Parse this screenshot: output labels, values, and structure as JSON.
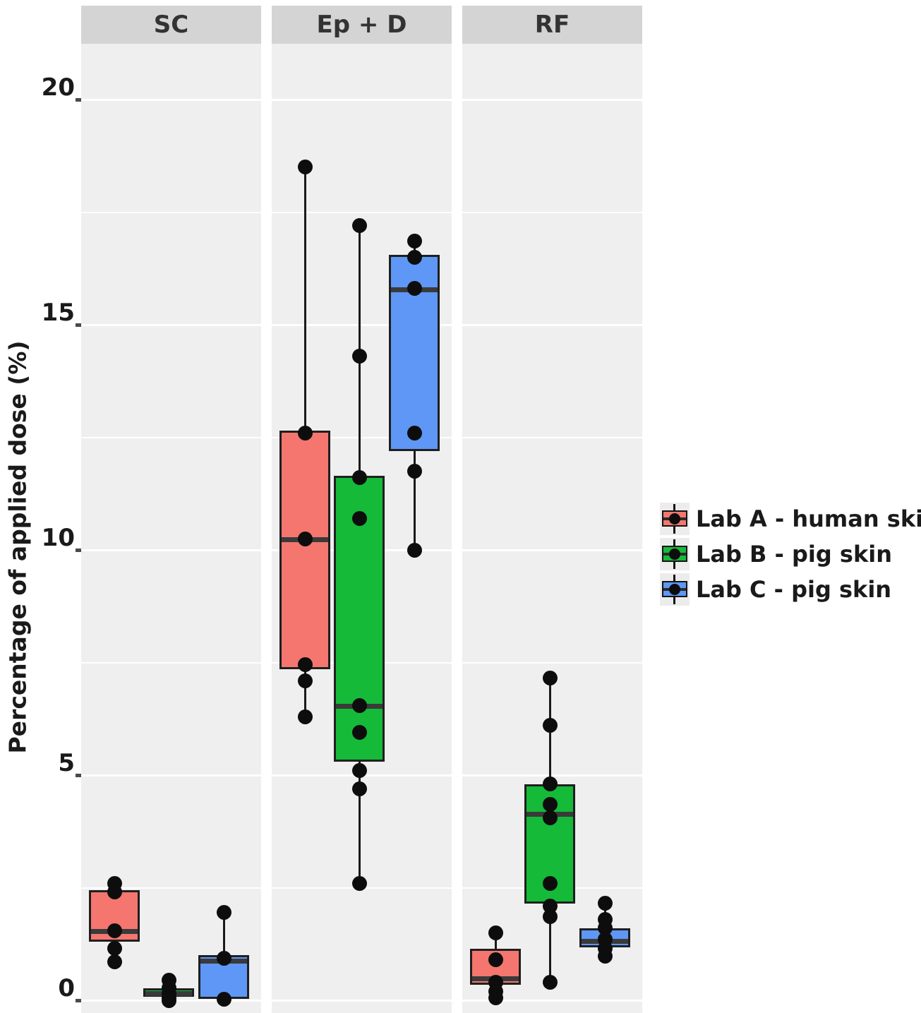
{
  "chart_data": {
    "type": "boxplot",
    "title": "",
    "ylabel": "Percentage of applied dose (%)",
    "xlabel": "",
    "yticks": [
      0,
      5,
      10,
      15,
      20
    ],
    "yticks_minor": [
      2.5,
      7.5,
      12.5,
      17.5
    ],
    "ylim": [
      0,
      20
    ],
    "grid": "white major and minor horizontal gridlines on light grey panels",
    "legend_position": "right",
    "groups": [
      {
        "name": "Lab A - human skin",
        "color": "#F4766E"
      },
      {
        "name": "Lab B - pig skin",
        "color": "#15BA38"
      },
      {
        "name": "Lab C - pig skin",
        "color": "#5E97F5"
      }
    ],
    "colors": {
      "panel_bg": "#efefef",
      "strip_bg": "#d4d4d4",
      "gridline": "#ffffff",
      "box_outline": "#1f1f1f",
      "median": "#3a3a3a",
      "whisker": "#1a1a1a",
      "point": "#0d0d0d"
    },
    "facets": [
      {
        "label": "SC",
        "boxes": [
          {
            "group": "Lab A - human skin",
            "q1": 1.3,
            "median": 1.55,
            "q3": 2.45,
            "whisker_low": 0.85,
            "whisker_high": 2.6,
            "points": [
              2.6,
              2.4,
              1.55,
              1.15,
              0.85
            ]
          },
          {
            "group": "Lab B - pig skin",
            "q1": 0.08,
            "median": 0.17,
            "q3": 0.27,
            "whisker_low": 0.0,
            "whisker_high": 0.45,
            "points": [
              0.45,
              0.28,
              0.15,
              0.05,
              0.0
            ]
          },
          {
            "group": "Lab C - pig skin",
            "q1": 0.03,
            "median": 0.9,
            "q3": 1.0,
            "whisker_low": 0.0,
            "whisker_high": 1.95,
            "points": [
              1.95,
              0.93,
              0.02
            ]
          }
        ]
      },
      {
        "label": "Ep + D",
        "boxes": [
          {
            "group": "Lab A - human skin",
            "q1": 7.35,
            "median": 10.25,
            "q3": 12.65,
            "whisker_low": 6.3,
            "whisker_high": 18.5,
            "points": [
              18.5,
              12.6,
              10.25,
              7.45,
              7.1,
              6.3
            ]
          },
          {
            "group": "Lab B - pig skin",
            "q1": 5.3,
            "median": 6.55,
            "q3": 11.65,
            "whisker_low": 2.6,
            "whisker_high": 17.2,
            "points": [
              17.2,
              14.3,
              11.6,
              10.7,
              6.55,
              5.95,
              5.1,
              4.7,
              2.6
            ]
          },
          {
            "group": "Lab C - pig skin",
            "q1": 12.2,
            "median": 15.8,
            "q3": 16.55,
            "whisker_low": 10.0,
            "whisker_high": 16.85,
            "points": [
              16.85,
              16.5,
              15.8,
              12.6,
              11.75,
              10.0
            ]
          }
        ]
      },
      {
        "label": "RF",
        "boxes": [
          {
            "group": "Lab A - human skin",
            "q1": 0.35,
            "median": 0.5,
            "q3": 1.15,
            "whisker_low": 0.05,
            "whisker_high": 1.5,
            "points": [
              1.5,
              0.9,
              0.4,
              0.2,
              0.05
            ]
          },
          {
            "group": "Lab B - pig skin",
            "q1": 2.15,
            "median": 4.15,
            "q3": 4.8,
            "whisker_low": 0.4,
            "whisker_high": 7.15,
            "points": [
              7.15,
              6.1,
              4.8,
              4.35,
              4.05,
              2.6,
              2.1,
              1.85,
              0.4
            ]
          },
          {
            "group": "Lab C - pig skin",
            "q1": 1.18,
            "median": 1.33,
            "q3": 1.6,
            "whisker_low": 0.95,
            "whisker_high": 2.15,
            "points": [
              2.15,
              1.8,
              1.6,
              1.35,
              1.15,
              0.98
            ]
          }
        ]
      }
    ]
  }
}
